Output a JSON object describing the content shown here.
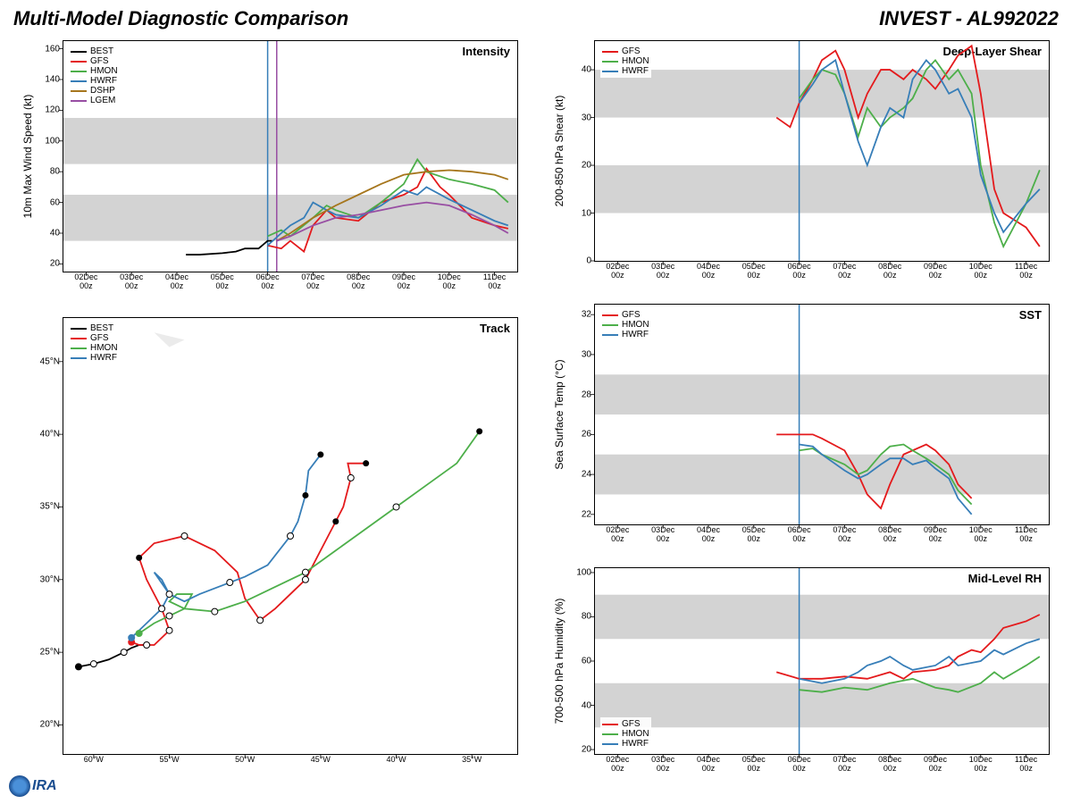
{
  "title": "Multi-Model Diagnostic Comparison",
  "subtitle": "INVEST - AL992022",
  "colors": {
    "BEST": "#000000",
    "GFS": "#e41a1c",
    "HMON": "#4daf4a",
    "HWRF": "#377eb8",
    "DSHP": "#a6761d",
    "LGEM": "#984ea3",
    "band": "#d3d3d3",
    "grid": "#cccccc",
    "vline1": "#377eb8",
    "vline2": "#984ea3"
  },
  "xaxis": {
    "labels": [
      "02Dec\n00z",
      "03Dec\n00z",
      "04Dec\n00z",
      "05Dec\n00z",
      "06Dec\n00z",
      "07Dec\n00z",
      "08Dec\n00z",
      "09Dec\n00z",
      "10Dec\n00z",
      "11Dec\n00z"
    ],
    "min": 1.5,
    "max": 11.5
  },
  "intensity": {
    "title": "Intensity",
    "ylabel": "10m Max Wind Speed (kt)",
    "ylim": [
      15,
      165
    ],
    "yticks": [
      20,
      40,
      60,
      80,
      100,
      120,
      140,
      160
    ],
    "bands": [
      [
        35,
        65
      ],
      [
        85,
        115
      ]
    ],
    "vlines": [
      6.0,
      6.2
    ],
    "legend": [
      "BEST",
      "GFS",
      "HMON",
      "HWRF",
      "DSHP",
      "LGEM"
    ],
    "series": {
      "BEST": [
        [
          4.2,
          26
        ],
        [
          4.5,
          26
        ],
        [
          5.0,
          27
        ],
        [
          5.3,
          28
        ],
        [
          5.5,
          30
        ],
        [
          5.8,
          30
        ],
        [
          6.0,
          35
        ],
        [
          6.1,
          35
        ]
      ],
      "GFS": [
        [
          6.0,
          32
        ],
        [
          6.3,
          30
        ],
        [
          6.5,
          35
        ],
        [
          6.8,
          28
        ],
        [
          7.0,
          45
        ],
        [
          7.3,
          55
        ],
        [
          7.5,
          50
        ],
        [
          8.0,
          48
        ],
        [
          8.5,
          60
        ],
        [
          9.0,
          65
        ],
        [
          9.3,
          70
        ],
        [
          9.5,
          82
        ],
        [
          9.8,
          70
        ],
        [
          10.0,
          65
        ],
        [
          10.5,
          50
        ],
        [
          11.0,
          45
        ],
        [
          11.3,
          43
        ]
      ],
      "HMON": [
        [
          6.0,
          38
        ],
        [
          6.3,
          42
        ],
        [
          6.5,
          38
        ],
        [
          7.0,
          50
        ],
        [
          7.3,
          58
        ],
        [
          7.5,
          55
        ],
        [
          8.0,
          50
        ],
        [
          8.5,
          60
        ],
        [
          9.0,
          72
        ],
        [
          9.3,
          88
        ],
        [
          9.5,
          80
        ],
        [
          10.0,
          75
        ],
        [
          10.5,
          72
        ],
        [
          11.0,
          68
        ],
        [
          11.3,
          60
        ]
      ],
      "HWRF": [
        [
          6.0,
          32
        ],
        [
          6.3,
          40
        ],
        [
          6.5,
          45
        ],
        [
          6.8,
          50
        ],
        [
          7.0,
          60
        ],
        [
          7.3,
          55
        ],
        [
          7.5,
          52
        ],
        [
          8.0,
          50
        ],
        [
          8.5,
          58
        ],
        [
          9.0,
          68
        ],
        [
          9.3,
          65
        ],
        [
          9.5,
          70
        ],
        [
          10.0,
          62
        ],
        [
          10.5,
          55
        ],
        [
          11.0,
          48
        ],
        [
          11.3,
          45
        ]
      ],
      "DSHP": [
        [
          6.2,
          35
        ],
        [
          6.5,
          40
        ],
        [
          7.0,
          50
        ],
        [
          7.5,
          58
        ],
        [
          8.0,
          65
        ],
        [
          8.5,
          72
        ],
        [
          9.0,
          78
        ],
        [
          9.5,
          80
        ],
        [
          10.0,
          81
        ],
        [
          10.5,
          80
        ],
        [
          11.0,
          78
        ],
        [
          11.3,
          75
        ]
      ],
      "LGEM": [
        [
          6.2,
          35
        ],
        [
          6.5,
          38
        ],
        [
          7.0,
          45
        ],
        [
          7.5,
          50
        ],
        [
          8.0,
          52
        ],
        [
          8.5,
          55
        ],
        [
          9.0,
          58
        ],
        [
          9.5,
          60
        ],
        [
          10.0,
          58
        ],
        [
          10.5,
          52
        ],
        [
          11.0,
          45
        ],
        [
          11.3,
          40
        ]
      ]
    }
  },
  "shear": {
    "title": "Deep-Layer Shear",
    "ylabel": "200-850 hPa Shear (kt)",
    "ylim": [
      0,
      46
    ],
    "yticks": [
      0,
      10,
      20,
      30,
      40
    ],
    "bands": [
      [
        10,
        20
      ],
      [
        30,
        40
      ]
    ],
    "vlines": [
      6.0
    ],
    "legend": [
      "GFS",
      "HMON",
      "HWRF"
    ],
    "series": {
      "GFS": [
        [
          5.5,
          30
        ],
        [
          5.8,
          28
        ],
        [
          6.0,
          33
        ],
        [
          6.3,
          38
        ],
        [
          6.5,
          42
        ],
        [
          6.8,
          44
        ],
        [
          7.0,
          40
        ],
        [
          7.3,
          30
        ],
        [
          7.5,
          35
        ],
        [
          7.8,
          40
        ],
        [
          8.0,
          40
        ],
        [
          8.3,
          38
        ],
        [
          8.5,
          40
        ],
        [
          8.8,
          38
        ],
        [
          9.0,
          36
        ],
        [
          9.3,
          40
        ],
        [
          9.5,
          43
        ],
        [
          9.8,
          45
        ],
        [
          10.0,
          35
        ],
        [
          10.3,
          15
        ],
        [
          10.5,
          10
        ],
        [
          11.0,
          7
        ],
        [
          11.3,
          3
        ]
      ],
      "HMON": [
        [
          6.0,
          34
        ],
        [
          6.3,
          38
        ],
        [
          6.5,
          40
        ],
        [
          6.8,
          39
        ],
        [
          7.0,
          35
        ],
        [
          7.3,
          26
        ],
        [
          7.5,
          32
        ],
        [
          7.8,
          28
        ],
        [
          8.0,
          30
        ],
        [
          8.3,
          32
        ],
        [
          8.5,
          34
        ],
        [
          8.8,
          40
        ],
        [
          9.0,
          42
        ],
        [
          9.3,
          38
        ],
        [
          9.5,
          40
        ],
        [
          9.8,
          35
        ],
        [
          10.0,
          20
        ],
        [
          10.3,
          8
        ],
        [
          10.5,
          3
        ],
        [
          11.0,
          12
        ],
        [
          11.3,
          19
        ]
      ],
      "HWRF": [
        [
          6.0,
          33
        ],
        [
          6.3,
          37
        ],
        [
          6.5,
          40
        ],
        [
          6.8,
          42
        ],
        [
          7.0,
          35
        ],
        [
          7.3,
          25
        ],
        [
          7.5,
          20
        ],
        [
          7.8,
          28
        ],
        [
          8.0,
          32
        ],
        [
          8.3,
          30
        ],
        [
          8.5,
          38
        ],
        [
          8.8,
          42
        ],
        [
          9.0,
          40
        ],
        [
          9.3,
          35
        ],
        [
          9.5,
          36
        ],
        [
          9.8,
          30
        ],
        [
          10.0,
          18
        ],
        [
          10.3,
          10
        ],
        [
          10.5,
          6
        ],
        [
          11.0,
          12
        ],
        [
          11.3,
          15
        ]
      ]
    }
  },
  "sst": {
    "title": "SST",
    "ylabel": "Sea Surface Temp (°C)",
    "ylim": [
      21.5,
      32.5
    ],
    "yticks": [
      22,
      24,
      26,
      28,
      30,
      32
    ],
    "bands": [
      [
        23,
        25
      ],
      [
        27,
        29
      ]
    ],
    "vlines": [
      6.0
    ],
    "legend": [
      "GFS",
      "HMON",
      "HWRF"
    ],
    "series": {
      "GFS": [
        [
          5.5,
          26
        ],
        [
          6.0,
          26
        ],
        [
          6.3,
          26
        ],
        [
          6.5,
          25.8
        ],
        [
          7.0,
          25.2
        ],
        [
          7.3,
          24
        ],
        [
          7.5,
          23
        ],
        [
          7.8,
          22.3
        ],
        [
          8.0,
          23.5
        ],
        [
          8.3,
          25
        ],
        [
          8.5,
          25.2
        ],
        [
          8.8,
          25.5
        ],
        [
          9.0,
          25.2
        ],
        [
          9.3,
          24.5
        ],
        [
          9.5,
          23.5
        ],
        [
          9.8,
          22.8
        ]
      ],
      "HMON": [
        [
          6.0,
          25.2
        ],
        [
          6.3,
          25.3
        ],
        [
          6.5,
          25
        ],
        [
          7.0,
          24.5
        ],
        [
          7.3,
          24
        ],
        [
          7.5,
          24.2
        ],
        [
          7.8,
          25
        ],
        [
          8.0,
          25.4
        ],
        [
          8.3,
          25.5
        ],
        [
          8.5,
          25.2
        ],
        [
          8.8,
          24.8
        ],
        [
          9.0,
          24.5
        ],
        [
          9.3,
          24
        ],
        [
          9.5,
          23.2
        ],
        [
          9.8,
          22.5
        ]
      ],
      "HWRF": [
        [
          6.0,
          25.5
        ],
        [
          6.3,
          25.4
        ],
        [
          6.5,
          25
        ],
        [
          7.0,
          24.2
        ],
        [
          7.3,
          23.8
        ],
        [
          7.5,
          24
        ],
        [
          7.8,
          24.5
        ],
        [
          8.0,
          24.8
        ],
        [
          8.3,
          24.8
        ],
        [
          8.5,
          24.5
        ],
        [
          8.8,
          24.7
        ],
        [
          9.0,
          24.3
        ],
        [
          9.3,
          23.8
        ],
        [
          9.5,
          22.8
        ],
        [
          9.8,
          22
        ]
      ]
    }
  },
  "rh": {
    "title": "Mid-Level RH",
    "ylabel": "700-500 hPa Humidity (%)",
    "ylim": [
      18,
      102
    ],
    "yticks": [
      20,
      40,
      60,
      80,
      100
    ],
    "bands": [
      [
        30,
        50
      ],
      [
        70,
        90
      ]
    ],
    "vlines": [
      6.0
    ],
    "legend": [
      "GFS",
      "HMON",
      "HWRF"
    ],
    "legend_pos": "bottom",
    "series": {
      "GFS": [
        [
          5.5,
          55
        ],
        [
          6.0,
          52
        ],
        [
          6.5,
          52
        ],
        [
          7.0,
          53
        ],
        [
          7.5,
          52
        ],
        [
          8.0,
          55
        ],
        [
          8.3,
          52
        ],
        [
          8.5,
          55
        ],
        [
          9.0,
          56
        ],
        [
          9.3,
          58
        ],
        [
          9.5,
          62
        ],
        [
          9.8,
          65
        ],
        [
          10.0,
          64
        ],
        [
          10.3,
          70
        ],
        [
          10.5,
          75
        ],
        [
          11.0,
          78
        ],
        [
          11.3,
          81
        ]
      ],
      "HMON": [
        [
          6.0,
          47
        ],
        [
          6.5,
          46
        ],
        [
          7.0,
          48
        ],
        [
          7.5,
          47
        ],
        [
          8.0,
          50
        ],
        [
          8.5,
          52
        ],
        [
          9.0,
          48
        ],
        [
          9.3,
          47
        ],
        [
          9.5,
          46
        ],
        [
          10.0,
          50
        ],
        [
          10.3,
          55
        ],
        [
          10.5,
          52
        ],
        [
          11.0,
          58
        ],
        [
          11.3,
          62
        ]
      ],
      "HWRF": [
        [
          6.0,
          52
        ],
        [
          6.5,
          50
        ],
        [
          7.0,
          52
        ],
        [
          7.3,
          55
        ],
        [
          7.5,
          58
        ],
        [
          7.8,
          60
        ],
        [
          8.0,
          62
        ],
        [
          8.3,
          58
        ],
        [
          8.5,
          56
        ],
        [
          9.0,
          58
        ],
        [
          9.3,
          62
        ],
        [
          9.5,
          58
        ],
        [
          10.0,
          60
        ],
        [
          10.3,
          65
        ],
        [
          10.5,
          63
        ],
        [
          11.0,
          68
        ],
        [
          11.3,
          70
        ]
      ]
    }
  },
  "track": {
    "title": "Track",
    "xlim": [
      62,
      32
    ],
    "ylim": [
      18,
      48
    ],
    "xticks": [
      60,
      55,
      50,
      45,
      40,
      35
    ],
    "yticks": [
      20,
      25,
      30,
      35,
      40,
      45
    ],
    "xsuffix": "°W",
    "ysuffix": "°N",
    "legend": [
      "BEST",
      "GFS",
      "HMON",
      "HWRF"
    ],
    "series": {
      "BEST": [
        [
          61,
          24
        ],
        [
          60,
          24.2
        ],
        [
          59,
          24.5
        ],
        [
          58,
          25
        ],
        [
          57.5,
          25.3
        ],
        [
          57,
          25.5
        ],
        [
          56.5,
          25.5
        ]
      ],
      "GFS": [
        [
          57.5,
          25.7
        ],
        [
          57,
          25.5
        ],
        [
          56,
          25.5
        ],
        [
          55,
          26.5
        ],
        [
          55.5,
          28
        ],
        [
          56.5,
          30
        ],
        [
          57,
          31.5
        ],
        [
          56,
          32.5
        ],
        [
          54,
          33
        ],
        [
          52,
          32
        ],
        [
          50.5,
          30.5
        ],
        [
          50,
          28.7
        ],
        [
          49,
          27.2
        ],
        [
          48,
          28
        ],
        [
          47,
          29
        ],
        [
          46,
          30
        ],
        [
          45,
          32
        ],
        [
          44,
          34
        ],
        [
          43.5,
          35
        ],
        [
          43,
          37
        ],
        [
          43.2,
          38
        ],
        [
          42,
          38
        ]
      ],
      "HMON": [
        [
          57,
          26.3
        ],
        [
          56,
          27
        ],
        [
          55,
          27.5
        ],
        [
          54,
          28
        ],
        [
          53.5,
          29
        ],
        [
          54.5,
          29
        ],
        [
          55,
          28.5
        ],
        [
          54,
          28
        ],
        [
          52,
          27.8
        ],
        [
          50,
          28.5
        ],
        [
          48,
          29.5
        ],
        [
          46,
          30.5
        ],
        [
          44,
          32
        ],
        [
          42,
          33.5
        ],
        [
          40,
          35
        ],
        [
          38,
          36.5
        ],
        [
          36,
          38
        ],
        [
          34.5,
          40.2
        ]
      ],
      "HWRF": [
        [
          57.5,
          26
        ],
        [
          56.5,
          27
        ],
        [
          55.5,
          28
        ],
        [
          55,
          29
        ],
        [
          55.5,
          30
        ],
        [
          56,
          30.5
        ],
        [
          55,
          29
        ],
        [
          54,
          28.5
        ],
        [
          53,
          29
        ],
        [
          51,
          29.8
        ],
        [
          50,
          30.2
        ],
        [
          48.5,
          31
        ],
        [
          47,
          33
        ],
        [
          46.5,
          34
        ],
        [
          46,
          35.8
        ],
        [
          45.8,
          37.5
        ],
        [
          45,
          38.6
        ]
      ]
    },
    "markers_open": {
      "BEST": [
        [
          60,
          24.2
        ],
        [
          58,
          25
        ],
        [
          56.5,
          25.5
        ]
      ],
      "GFS": [
        [
          55,
          26.5
        ],
        [
          54,
          33
        ],
        [
          49,
          27.2
        ],
        [
          46,
          30
        ],
        [
          43,
          37
        ]
      ],
      "HMON": [
        [
          55,
          27.5
        ],
        [
          52,
          27.8
        ],
        [
          46,
          30.5
        ],
        [
          40,
          35
        ]
      ],
      "HWRF": [
        [
          55.5,
          28
        ],
        [
          55,
          29
        ],
        [
          51,
          29.8
        ],
        [
          47,
          33
        ]
      ]
    },
    "markers_closed": {
      "BEST": [
        [
          61,
          24
        ]
      ],
      "GFS": [
        [
          57.5,
          25.7
        ],
        [
          57,
          31.5
        ],
        [
          44,
          34
        ],
        [
          42,
          38
        ]
      ],
      "HMON": [
        [
          57,
          26.3
        ],
        [
          34.5,
          40.2
        ]
      ],
      "HWRF": [
        [
          57.5,
          26
        ],
        [
          46,
          35.8
        ],
        [
          45,
          38.6
        ]
      ]
    }
  },
  "logo": "IRA"
}
